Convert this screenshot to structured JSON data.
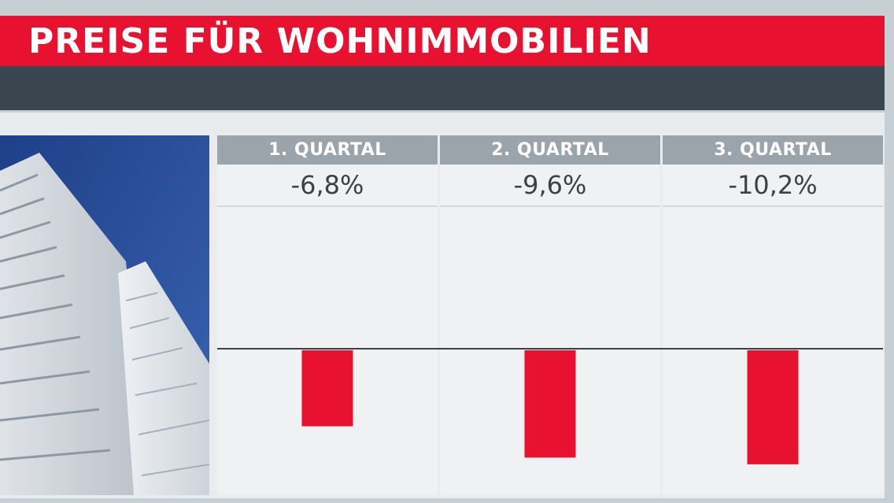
{
  "title": "PREISE FÜR WOHNIMMOBILIEN",
  "colors": {
    "accent": "#e8112f",
    "dark_bar": "#394650",
    "header_gray": "#9ba4ab",
    "bar": "#e8112f"
  },
  "image": {
    "description_icon": "building-photo"
  },
  "chart_data": {
    "type": "bar",
    "categories": [
      "1. QUARTAL",
      "2. QUARTAL",
      "3. QUARTAL"
    ],
    "values": [
      -6.8,
      -9.6,
      -10.2
    ],
    "value_labels": [
      "-6,8%",
      "-9,6%",
      "-10,2%"
    ],
    "title": "PREISE FÜR WOHNIMMOBILIEN",
    "xlabel": "",
    "ylabel": "",
    "ylim": [
      -12,
      12
    ],
    "grid": false,
    "legend": "none"
  }
}
